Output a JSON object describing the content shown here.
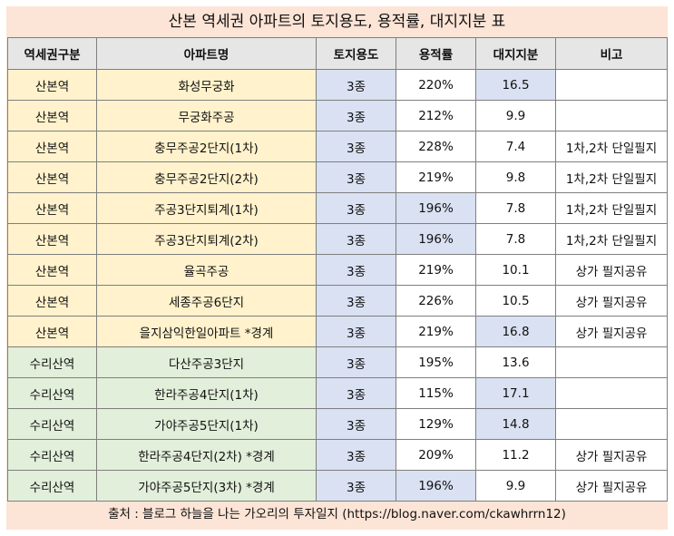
{
  "title": "산본 역세권 아파트의 토지용도, 용적률, 대지지분 표",
  "headers": [
    "역세권구분",
    "아파트명",
    "토지용도",
    "용적률",
    "대지지분",
    "비고"
  ],
  "rows": [
    {
      "station": "산본역",
      "name": "화성무궁화",
      "use": "3종",
      "far": "220%",
      "share": "16.5",
      "note": "",
      "share_highlight": true
    },
    {
      "station": "산본역",
      "name": "무궁화주공",
      "use": "3종",
      "far": "212%",
      "share": "9.9",
      "note": "",
      "share_highlight": false
    },
    {
      "station": "산본역",
      "name": "충무주공2단지(1차)",
      "use": "3종",
      "far": "228%",
      "share": "7.4",
      "note": "1차,2차 단일필지",
      "share_highlight": false
    },
    {
      "station": "산본역",
      "name": "충무주공2단지(2차)",
      "use": "3종",
      "far": "219%",
      "share": "9.8",
      "note": "1차,2차 단일필지",
      "share_highlight": false
    },
    {
      "station": "산본역",
      "name": "주공3단지퇴계(1차)",
      "use": "3종",
      "far": "196%",
      "share": "7.8",
      "note": "1차,2차 단일필지",
      "share_highlight": false,
      "far_highlight": true
    },
    {
      "station": "산본역",
      "name": "주공3단지퇴계(2차)",
      "use": "3종",
      "far": "196%",
      "share": "7.8",
      "note": "1차,2차 단일필지",
      "share_highlight": false,
      "far_highlight": true
    },
    {
      "station": "산본역",
      "name": "율곡주공",
      "use": "3종",
      "far": "219%",
      "share": "10.1",
      "note": "상가 필지공유",
      "share_highlight": false
    },
    {
      "station": "산본역",
      "name": "세종주공6단지",
      "use": "3종",
      "far": "226%",
      "share": "10.5",
      "note": "상가 필지공유",
      "share_highlight": false
    },
    {
      "station": "산본역",
      "name": "을지삼익한일아파트 *경계",
      "use": "3종",
      "far": "219%",
      "share": "16.8",
      "note": "상가 필지공유",
      "share_highlight": true
    },
    {
      "station": "수리산역",
      "name": "다산주공3단지",
      "use": "3종",
      "far": "195%",
      "share": "13.6",
      "note": "",
      "share_highlight": false
    },
    {
      "station": "수리산역",
      "name": "한라주공4단지(1차)",
      "use": "3종",
      "far": "115%",
      "share": "17.1",
      "note": "",
      "share_highlight": true
    },
    {
      "station": "수리산역",
      "name": "가야주공5단지(1차)",
      "use": "3종",
      "far": "129%",
      "share": "14.8",
      "note": "",
      "share_highlight": true
    },
    {
      "station": "수리산역",
      "name": "한라주공4단지(2차) *경계",
      "use": "3종",
      "far": "209%",
      "share": "11.2",
      "note": "상가 필지공유",
      "share_highlight": false
    },
    {
      "station": "수리산역",
      "name": "가야주공5단지(3차) *경계",
      "use": "3종",
      "far": "196%",
      "share": "9.9",
      "note": "상가 필지공유",
      "share_highlight": false,
      "far_highlight": true
    }
  ],
  "source": "출처 : 블로그 하늘을 나는 가오리의 투자일지 (https://blog.naver.com/ckawhrrn12)",
  "colors": {
    "frame": "#fce4d6",
    "header": "#e7e6e6",
    "sanbon": "#fff2cc",
    "surisan": "#e2efda",
    "highlight": "#d9e1f2"
  }
}
